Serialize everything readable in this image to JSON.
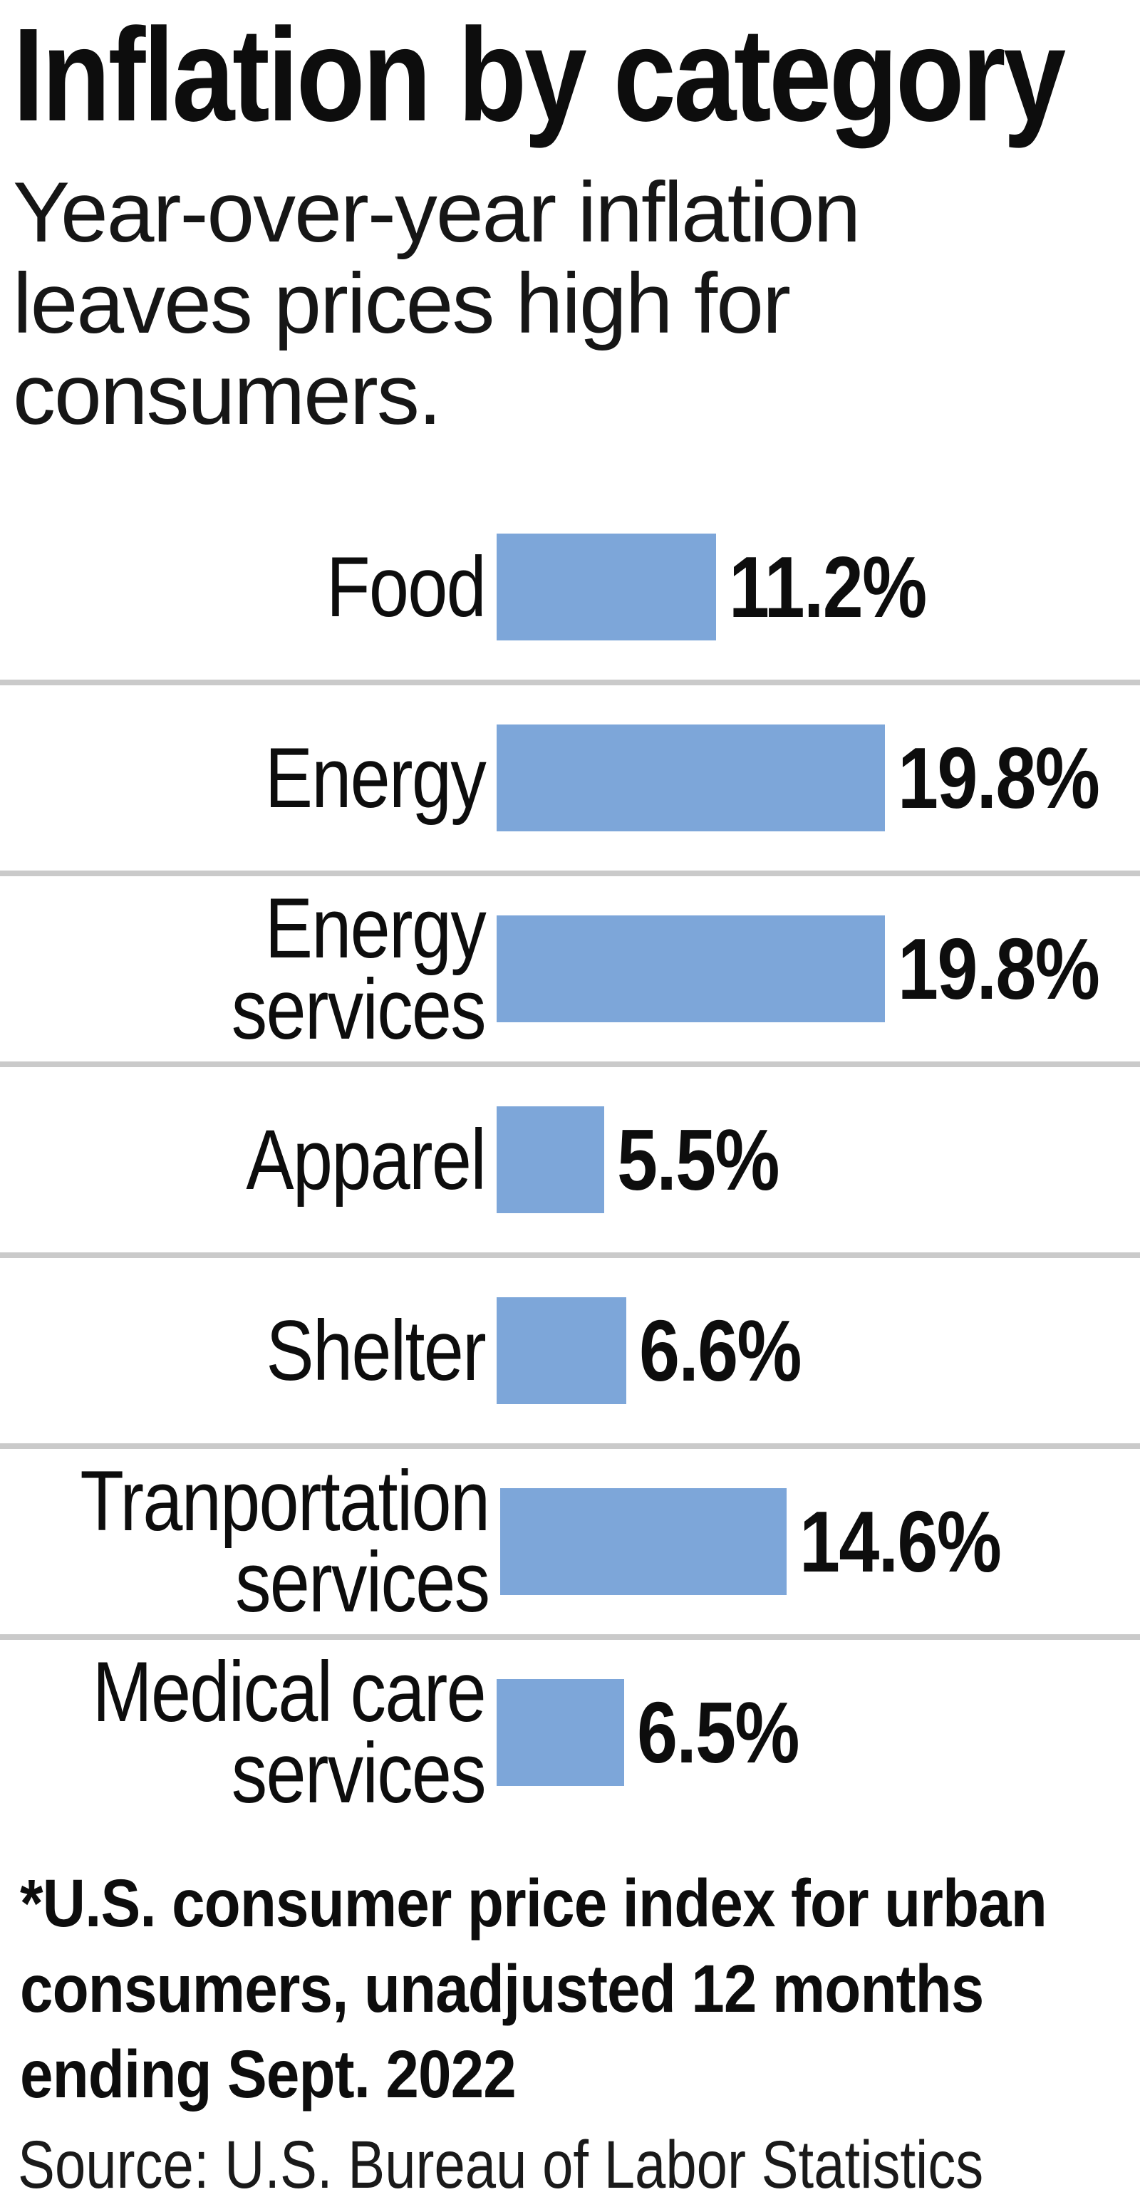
{
  "header": {
    "title": "Inflation by category",
    "subtitle_lines": [
      "Year-over-year inflation",
      "leaves prices high for",
      "consumers."
    ]
  },
  "chart_data": {
    "type": "bar",
    "orientation": "horizontal",
    "title": "Inflation by category",
    "subtitle": "Year-over-year inflation leaves prices high for consumers.",
    "categories": [
      "Food",
      "Energy",
      "Energy services",
      "Apparel",
      "Shelter",
      "Tranportation services",
      "Medical care services"
    ],
    "values": [
      11.2,
      19.8,
      19.8,
      5.5,
      6.6,
      14.6,
      6.5
    ],
    "value_labels": [
      "11.2%",
      "19.8%",
      "19.8%",
      "5.5%",
      "6.6%",
      "14.6%",
      "6.5%"
    ],
    "unit": "%",
    "xlim": [
      0,
      19.8
    ],
    "grid": false,
    "legend": false,
    "bar_color": "#7da6d9",
    "separator_color": "#cacaca"
  },
  "rows": [
    {
      "label_line1": "Food",
      "label_line2": "",
      "value_label": "11.2%"
    },
    {
      "label_line1": "Energy",
      "label_line2": "",
      "value_label": "19.8%"
    },
    {
      "label_line1": "Energy",
      "label_line2": "services",
      "value_label": "19.8%"
    },
    {
      "label_line1": "Apparel",
      "label_line2": "",
      "value_label": "5.5%"
    },
    {
      "label_line1": "Shelter",
      "label_line2": "",
      "value_label": "6.6%"
    },
    {
      "label_line1": "Tranportation",
      "label_line2": "services",
      "value_label": "14.6%"
    },
    {
      "label_line1": "Medical care",
      "label_line2": "services",
      "value_label": "6.5%"
    }
  ],
  "footnote_lines": [
    "*U.S. consumer price index for urban",
    "consumers, unadjusted 12 months",
    "ending Sept. 2022"
  ],
  "source": "Source: U.S. Bureau of Labor Statistics"
}
